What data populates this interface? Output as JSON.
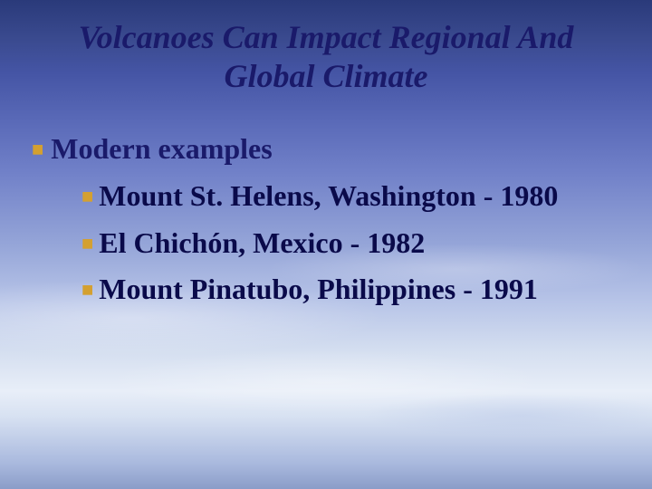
{
  "slide": {
    "title": "Volcanoes Can Impact Regional And Global Climate",
    "heading": "Modern examples",
    "items": [
      "Mount St. Helens, Washington - 1980",
      "El Chichón, Mexico - 1982",
      "Mount Pinatubo, Philippines - 1991"
    ],
    "colors": {
      "title": "#1a1a6a",
      "heading": "#1a1a6a",
      "body": "#0a0a4a",
      "bullet": "#d4a030"
    },
    "typography": {
      "title_fontsize": 36,
      "body_fontsize": 32,
      "title_style": "bold-italic",
      "body_style": "bold"
    },
    "background": {
      "type": "sky-clouds-gradient",
      "top_color": "#2a3a7a",
      "mid_color": "#95a5d8",
      "bottom_color": "#8a9dc8"
    }
  }
}
